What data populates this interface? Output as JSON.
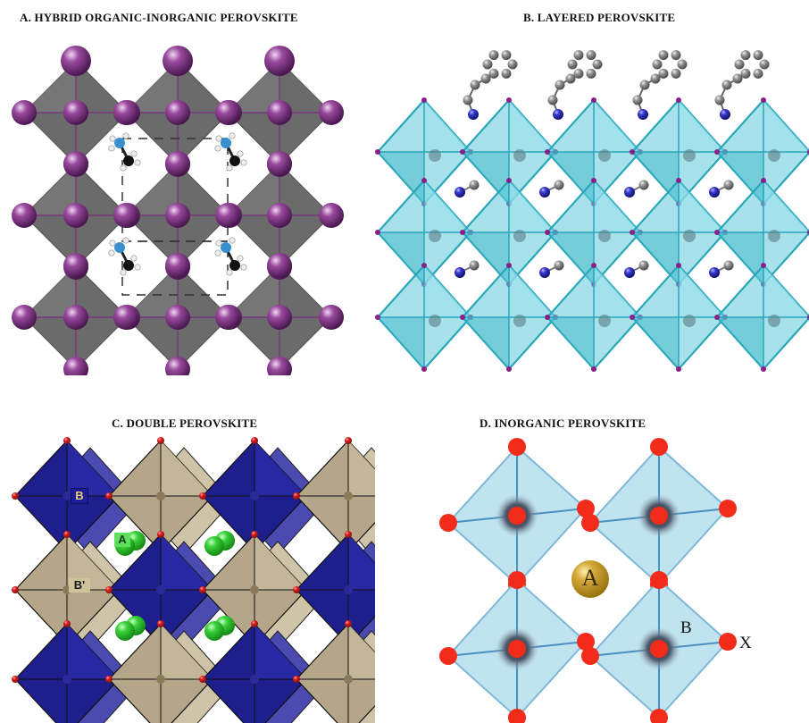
{
  "panels": {
    "a": {
      "title": "A. HYBRID ORGANIC-INORGANIC PEROVSKITE"
    },
    "b": {
      "title": "B. LAYERED PEROVSKITE"
    },
    "c": {
      "title": "C. DOUBLE PEROVSKITE",
      "label_b": "B",
      "label_a": "A",
      "label_bprime": "B'"
    },
    "d": {
      "title": "D. INORGANIC PEROVSKITE",
      "label_a": "A",
      "label_b": "B",
      "label_x": "X"
    }
  },
  "colors": {
    "halide": "#8a3a8c",
    "octahedron_gray": "#6b6b6b",
    "layered_octahedron": "#5ec8d8",
    "double_blue": "#1e1e8c",
    "double_tan": "#b5a68a",
    "green_cation": "#3ad23a",
    "inorganic_fill": "#bfe3ef",
    "inorganic_x": "#f22b1a",
    "inorganic_a": "#d4a93a"
  }
}
